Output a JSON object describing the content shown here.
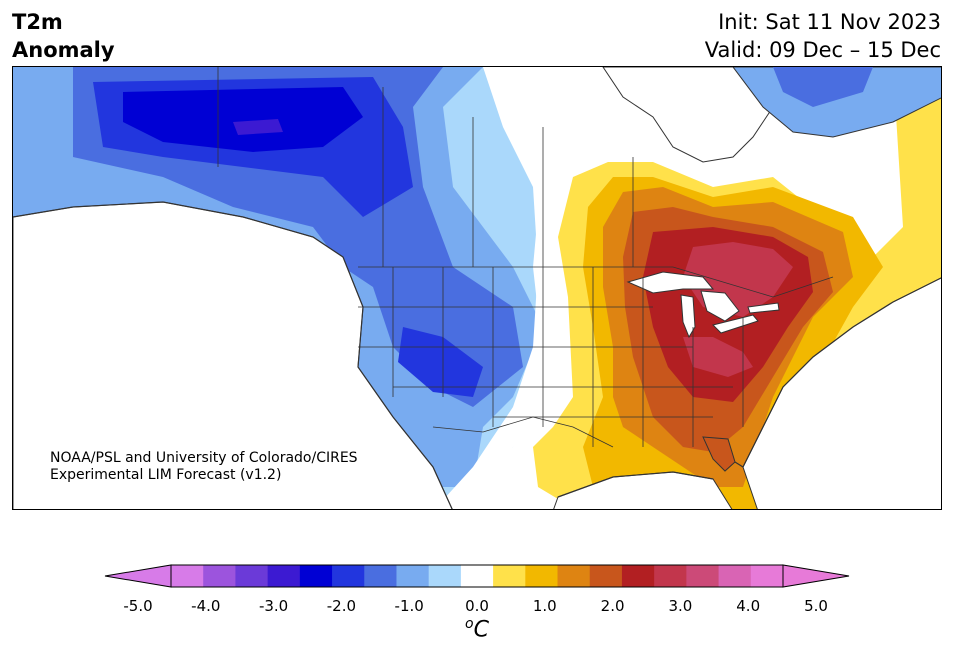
{
  "header": {
    "title_line1": "T2m",
    "title_line2": "Anomaly",
    "init": "Init: Sat 11 Nov 2023",
    "valid": "Valid: 09 Dec – 15 Dec"
  },
  "credit": {
    "line1": "NOAA/PSL and University of Colorado/CIRES",
    "line2": "Experimental LIM Forecast (v1.2)"
  },
  "colorbar": {
    "unit_base": "C",
    "unit_sup": "o",
    "ticks": [
      "-5.0",
      "-4.0",
      "-3.0",
      "-2.0",
      "-1.0",
      "0.0",
      "1.0",
      "2.0",
      "3.0",
      "4.0",
      "5.0"
    ],
    "colors": [
      "#d77be8",
      "#9c54dd",
      "#6b3ad8",
      "#3c1ad2",
      "#0000d4",
      "#2236de",
      "#4a6ee0",
      "#78abf0",
      "#aad8fb",
      "#ffffff",
      "#ffe14a",
      "#f2b800",
      "#de8412",
      "#c8561c",
      "#b21f22",
      "#c2364c",
      "#cc4a78",
      "#d964b4",
      "#e77ad8"
    ],
    "under_color": "#d77be8",
    "over_color": "#e77ad8"
  },
  "map": {
    "region": "North America",
    "variable": "2m temperature anomaly",
    "colors": {
      "ocean": "#ffffff",
      "coast": "#333333",
      "border": "#333333"
    }
  }
}
